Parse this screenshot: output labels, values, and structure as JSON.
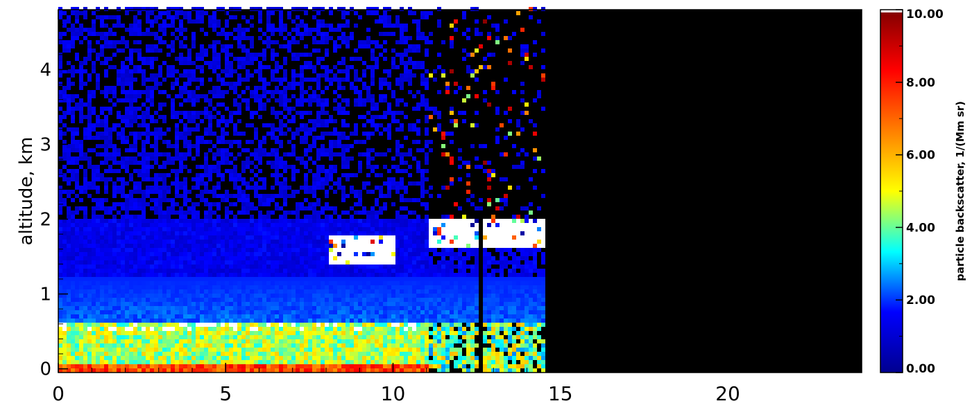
{
  "chart_data": {
    "type": "heatmap",
    "title": "",
    "xlabel": "",
    "ylabel": "altitude, km",
    "xlim": [
      0,
      24
    ],
    "ylim": [
      -0.05,
      4.8
    ],
    "x_ticks": [
      0,
      5,
      10,
      15,
      20
    ],
    "y_ticks": [
      0,
      1,
      2,
      3,
      4
    ],
    "grid": false,
    "colorbar": {
      "label": "particle backscatter, 1/(Mm sr)",
      "range": [
        0,
        10
      ],
      "ticks": [
        "0.00",
        "2.00",
        "4.00",
        "6.00",
        "8.00",
        "10.00"
      ],
      "colormap": [
        "#00008f",
        "#0000ff",
        "#00ffff",
        "#ffff00",
        "#ff7f00",
        "#ff0000",
        "#800000"
      ],
      "overflow_color": "#ffffff",
      "missing_color": "#000000"
    },
    "data_coverage": {
      "x_start": 0,
      "x_end": 14.5,
      "no_data_after": 14.5
    },
    "features": [
      {
        "name": "aerosol layer top",
        "x": [
          0,
          11
        ],
        "altitude": 0.6
      },
      {
        "name": "cloud layer",
        "x": [
          8,
          10
        ],
        "altitude": [
          1.4,
          1.8
        ]
      },
      {
        "name": "cloud layer",
        "x": [
          11,
          14.5
        ],
        "altitude": [
          1.6,
          2.0
        ]
      }
    ]
  }
}
